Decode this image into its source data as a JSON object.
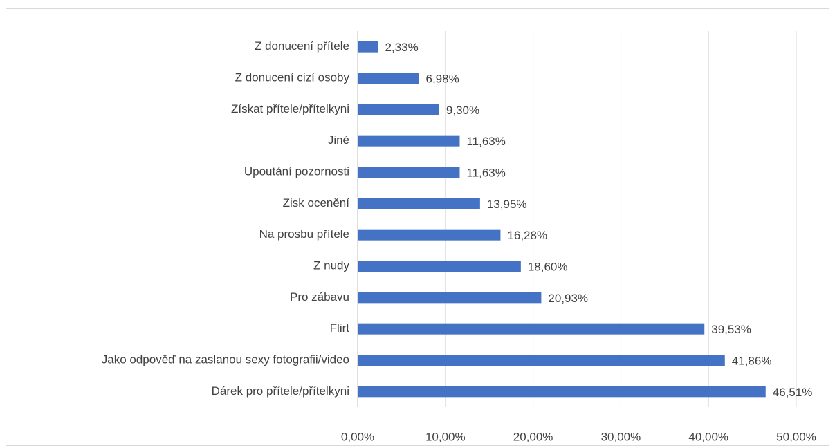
{
  "chart_data": {
    "type": "barh",
    "categories": [
      "Z donucení přítele",
      "Z donucení cizí osoby",
      "Získat přítele/přítelkyni",
      "Jiné",
      "Upoutání pozornosti",
      "Zisk ocenění",
      "Na prosbu přítele",
      "Z nudy",
      "Pro zábavu",
      "Flirt",
      "Jako odpověď na zaslanou sexy fotografii/video",
      "Dárek pro přítele/přítelkyni"
    ],
    "values": [
      2.33,
      6.98,
      9.3,
      11.63,
      11.63,
      13.95,
      16.28,
      18.6,
      20.93,
      39.53,
      41.86,
      46.51
    ],
    "value_labels": [
      "2,33%",
      "6,98%",
      "9,30%",
      "11,63%",
      "11,63%",
      "13,95%",
      "16,28%",
      "18,60%",
      "20,93%",
      "39,53%",
      "41,86%",
      "46,51%"
    ],
    "color": "#4472c4",
    "xlim": [
      0,
      50
    ],
    "xticks": [
      {
        "value": 0,
        "label": "0,00%"
      },
      {
        "value": 10,
        "label": "10,00%"
      },
      {
        "value": 20,
        "label": "20,00%"
      },
      {
        "value": 30,
        "label": "30,00%"
      },
      {
        "value": 40,
        "label": "40,00%"
      },
      {
        "value": 50,
        "label": "50,00%"
      }
    ],
    "grid": true
  }
}
